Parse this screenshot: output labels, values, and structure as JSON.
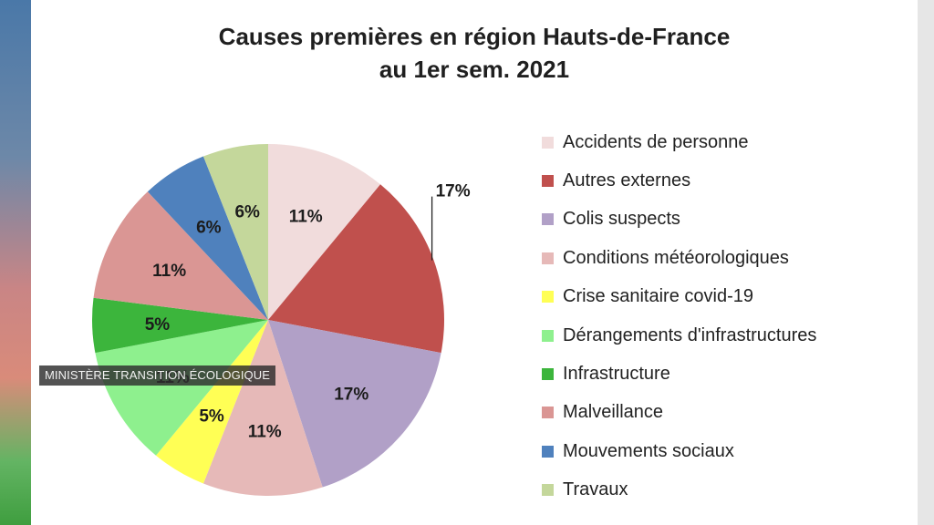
{
  "chart_data": {
    "type": "pie",
    "title": [
      "Causes premières en région Hauts-de-France",
      "au 1er sem. 2021"
    ],
    "legend_position": "right",
    "slices": [
      {
        "label": "Accidents de personne",
        "value": 11,
        "display": "11%",
        "color": "#f1dcdc"
      },
      {
        "label": "Autres externes",
        "value": 17,
        "display": "17%",
        "color": "#c0504d"
      },
      {
        "label": "Colis suspects",
        "value": 17,
        "display": "17%",
        "color": "#b1a0c7"
      },
      {
        "label": "Conditions météorologiques",
        "value": 11,
        "display": "11%",
        "color": "#e6b9b8"
      },
      {
        "label": "Crise sanitaire covid-19",
        "value": 5,
        "display": "5%",
        "color": "#ffff55"
      },
      {
        "label": "Dérangements d'infrastructures",
        "value": 11,
        "display": "11%",
        "color": "#8ef08e"
      },
      {
        "label": "Infrastructure",
        "value": 5,
        "display": "5%",
        "color": "#3cb53c"
      },
      {
        "label": "Malveillance",
        "value": 11,
        "display": "11%",
        "color": "#da9694"
      },
      {
        "label": "Mouvements sociaux",
        "value": 6,
        "display": "6%",
        "color": "#4f81bd"
      },
      {
        "label": "Travaux",
        "value": 6,
        "display": "6%",
        "color": "#c4d79b"
      }
    ]
  },
  "watermark": "MINISTÈRE TRANSITION ÉCOLOGIQUE"
}
